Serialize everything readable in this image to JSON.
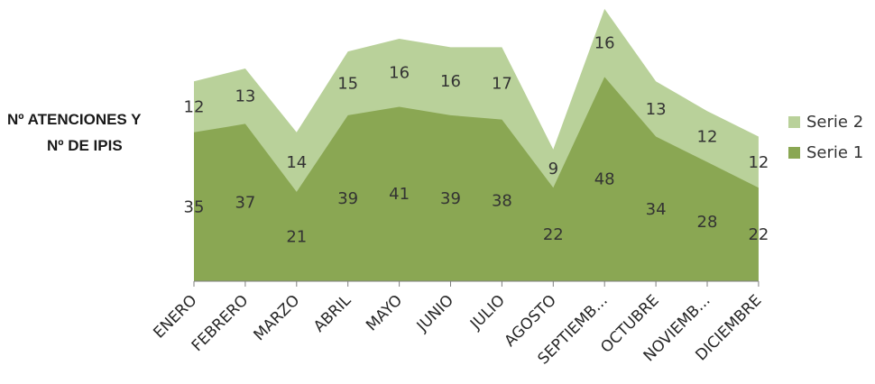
{
  "chart_data": {
    "type": "area",
    "stacked": true,
    "ylabel_lines": [
      "Nº ATENCIONES Y",
      "Nº DE  IPIS"
    ],
    "categories": [
      "ENERO",
      "FEBRERO",
      "MARZO",
      "ABRIL",
      "MAYO",
      "JUNIO",
      "JULIO",
      "AGOSTO",
      "SEPTIEMB...",
      "OCTUBRE",
      "NOVIEMB...",
      "DICIEMBRE"
    ],
    "series": [
      {
        "name": "Serie 1",
        "color": "#8aa753",
        "values": [
          35,
          37,
          21,
          39,
          41,
          39,
          38,
          22,
          48,
          34,
          28,
          22
        ]
      },
      {
        "name": "Serie 2",
        "color": "#b9d19a",
        "values": [
          12,
          13,
          14,
          15,
          16,
          16,
          17,
          9,
          16,
          13,
          12,
          12
        ]
      }
    ],
    "legend_position": "right",
    "grid": false,
    "data_labels": true
  }
}
